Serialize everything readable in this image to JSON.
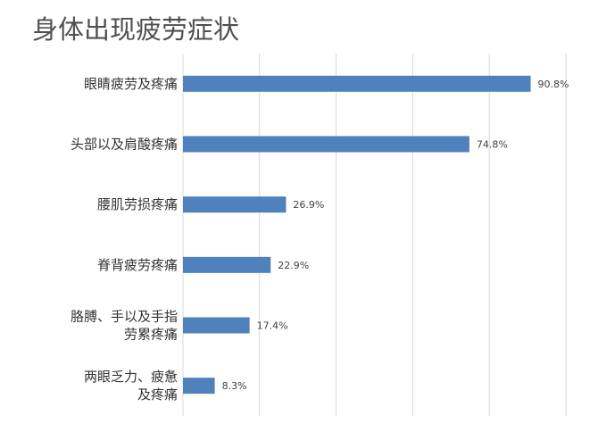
{
  "chart_data": {
    "type": "bar",
    "orientation": "horizontal",
    "title": "身体出现疲劳症状",
    "categories": [
      [
        "眼睛疲劳及疼痛"
      ],
      [
        "头部以及肩酸疼痛"
      ],
      [
        "腰肌劳损疼痛"
      ],
      [
        "脊背疲劳疼痛"
      ],
      [
        "胳膊、手以及手指",
        "劳累疼痛"
      ],
      [
        "两眼乏力、疲惫",
        "及疼痛"
      ]
    ],
    "values": [
      90.8,
      74.8,
      26.9,
      22.9,
      17.4,
      8.3
    ],
    "value_labels": [
      "90.8%",
      "74.8%",
      "26.9%",
      "22.9%",
      "17.4%",
      "8.3%"
    ],
    "xlim": [
      0,
      100
    ],
    "grid": "vertical",
    "bar_color": "#4f81bd",
    "grid_color": "#d9d9d9"
  }
}
